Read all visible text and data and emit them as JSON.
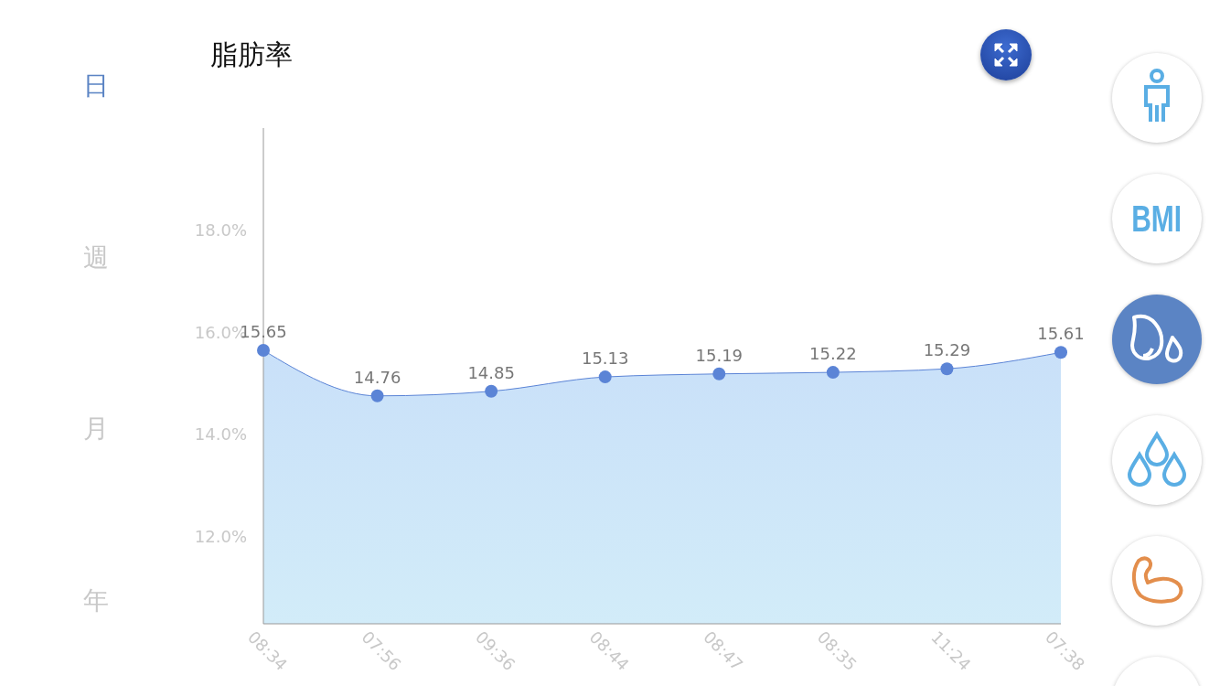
{
  "chart_data": {
    "type": "area",
    "title": "脂肪率",
    "categories": [
      "08:34",
      "07:56",
      "09:36",
      "08:44",
      "08:47",
      "08:35",
      "11:24",
      "07:38"
    ],
    "series": [
      {
        "color": "#5b84d6",
        "values": [
          15.65,
          14.76,
          14.85,
          15.13,
          15.19,
          15.22,
          15.29,
          15.61
        ]
      }
    ],
    "ylim": [
      10.3,
      20
    ],
    "yticks": [
      {
        "value": 12,
        "label": "12.0%"
      },
      {
        "value": 14,
        "label": "14.0%"
      },
      {
        "value": 16,
        "label": "16.0%"
      },
      {
        "value": 18,
        "label": "18.0%"
      }
    ],
    "data_labels": true,
    "marker": "circle",
    "grid": false,
    "legend": false,
    "annotations": [
      "日",
      "週",
      "月",
      "年",
      "BMI"
    ]
  }
}
